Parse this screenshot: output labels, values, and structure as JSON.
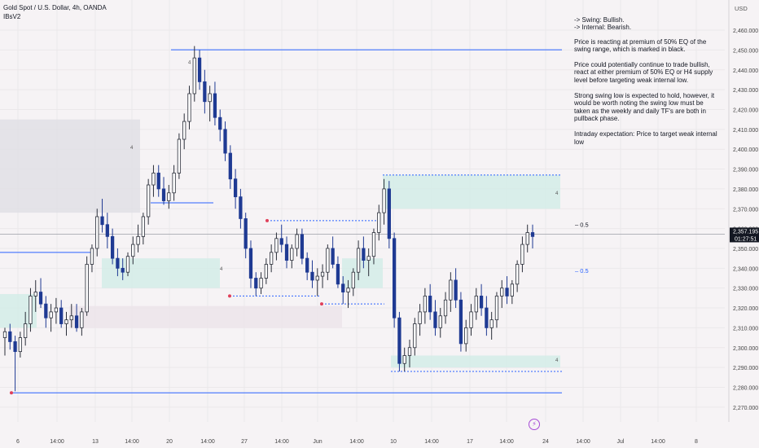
{
  "header": {
    "title": "Gold Spot / U.S. Dollar, 4h, OANDA",
    "indicator": "IBsV2"
  },
  "currency": "USD",
  "analysis": {
    "bias_swing": "-> Swing:  Bullish.",
    "bias_internal": "-> Internal:  Bearish.",
    "para1": "Price is reacting at premium of 50% EQ of the swing range, which is marked in black.",
    "para2": "Price could potentially continue to trade bullish, react at either premium of 50% EQ or H4 supply level before targeting weak internal low.",
    "para3": "Strong swing low is expected to hold, however, it would be worth noting the swing low must be taken as the weekly and daily TF's are both in pullback phase.",
    "para4": "Intraday expectation: Price to target weak internal low"
  },
  "price_labels": {
    "current": "2,357.195",
    "countdown": "01:27:51"
  },
  "markers": {
    "eq_label_1": "0.5",
    "eq_label_2": "0.5",
    "zone_tag": "4",
    "lightning": "⚡"
  },
  "colors": {
    "bull": "#2a2e39",
    "bear": "#1f3a93",
    "grid": "#ebe8ea",
    "level_line": "#2962ff",
    "demand_zone": "#d4ece8",
    "supply_zone": "#e1dfe5"
  },
  "chart_data": {
    "type": "candlestick",
    "symbol": "XAUUSD",
    "timeframe": "4h",
    "y_axis": {
      "ticks": [
        2270,
        2280,
        2290,
        2300,
        2310,
        2320,
        2330,
        2340,
        2350,
        2360,
        2370,
        2380,
        2390,
        2400,
        2410,
        2420,
        2430,
        2440,
        2450,
        2460
      ],
      "tick_labels": [
        "2,270.000",
        "2,280.000",
        "2,290.000",
        "2,300.000",
        "2,310.000",
        "2,320.000",
        "2,330.000",
        "2,340.000",
        "2,350.000",
        "2,360.000",
        "2,370.000",
        "2,380.000",
        "2,390.000",
        "2,400.000",
        "2,410.000",
        "2,420.000",
        "2,430.000",
        "2,440.000",
        "2,450.000",
        "2,460.000"
      ],
      "range": [
        2265,
        2467
      ]
    },
    "x_axis": {
      "tick_labels": [
        "6",
        "14:00",
        "13",
        "14:00",
        "20",
        "14:00",
        "27",
        "14:00",
        "Jun",
        "14:00",
        "10",
        "14:00",
        "17",
        "14:00",
        "24",
        "14:00",
        "Jul",
        "14:00",
        "8"
      ]
    },
    "current_price": 2357.195,
    "swing_high": 2450.1,
    "swing_low": 2277.2,
    "candles": [
      [
        2305,
        2310,
        2296,
        2308
      ],
      [
        2308,
        2312,
        2299,
        2303
      ],
      [
        2303,
        2306,
        2278,
        2298
      ],
      [
        2298,
        2308,
        2295,
        2305
      ],
      [
        2305,
        2318,
        2301,
        2312
      ],
      [
        2312,
        2330,
        2308,
        2326
      ],
      [
        2326,
        2334,
        2318,
        2328
      ],
      [
        2328,
        2335,
        2320,
        2322
      ],
      [
        2322,
        2326,
        2310,
        2315
      ],
      [
        2315,
        2322,
        2308,
        2318
      ],
      [
        2318,
        2325,
        2312,
        2320
      ],
      [
        2320,
        2324,
        2310,
        2312
      ],
      [
        2312,
        2318,
        2306,
        2314
      ],
      [
        2314,
        2322,
        2310,
        2316
      ],
      [
        2316,
        2322,
        2308,
        2310
      ],
      [
        2310,
        2320,
        2306,
        2318
      ],
      [
        2318,
        2346,
        2316,
        2342
      ],
      [
        2342,
        2352,
        2338,
        2350
      ],
      [
        2350,
        2370,
        2346,
        2366
      ],
      [
        2366,
        2375,
        2358,
        2362
      ],
      [
        2362,
        2368,
        2350,
        2356
      ],
      [
        2356,
        2360,
        2342,
        2345
      ],
      [
        2345,
        2350,
        2336,
        2340
      ],
      [
        2340,
        2345,
        2334,
        2338
      ],
      [
        2338,
        2348,
        2336,
        2346
      ],
      [
        2346,
        2356,
        2342,
        2352
      ],
      [
        2352,
        2362,
        2348,
        2356
      ],
      [
        2356,
        2368,
        2352,
        2366
      ],
      [
        2366,
        2385,
        2362,
        2382
      ],
      [
        2382,
        2392,
        2376,
        2388
      ],
      [
        2388,
        2392,
        2376,
        2380
      ],
      [
        2380,
        2386,
        2372,
        2374
      ],
      [
        2374,
        2382,
        2370,
        2378
      ],
      [
        2378,
        2392,
        2374,
        2388
      ],
      [
        2388,
        2408,
        2385,
        2405
      ],
      [
        2405,
        2418,
        2400,
        2414
      ],
      [
        2414,
        2432,
        2410,
        2428
      ],
      [
        2428,
        2452,
        2424,
        2446
      ],
      [
        2446,
        2450,
        2430,
        2434
      ],
      [
        2434,
        2440,
        2418,
        2424
      ],
      [
        2424,
        2432,
        2414,
        2428
      ],
      [
        2428,
        2434,
        2412,
        2416
      ],
      [
        2416,
        2420,
        2404,
        2410
      ],
      [
        2410,
        2414,
        2394,
        2398
      ],
      [
        2398,
        2402,
        2380,
        2385
      ],
      [
        2385,
        2390,
        2370,
        2376
      ],
      [
        2376,
        2380,
        2360,
        2365
      ],
      [
        2365,
        2368,
        2345,
        2350
      ],
      [
        2350,
        2354,
        2330,
        2335
      ],
      [
        2335,
        2338,
        2326,
        2330
      ],
      [
        2330,
        2338,
        2327,
        2335
      ],
      [
        2335,
        2345,
        2332,
        2342
      ],
      [
        2342,
        2352,
        2338,
        2348
      ],
      [
        2348,
        2358,
        2344,
        2355
      ],
      [
        2355,
        2362,
        2348,
        2352
      ],
      [
        2352,
        2356,
        2340,
        2344
      ],
      [
        2344,
        2352,
        2340,
        2350
      ],
      [
        2350,
        2360,
        2346,
        2357
      ],
      [
        2357,
        2360,
        2342,
        2345
      ],
      [
        2345,
        2348,
        2334,
        2338
      ],
      [
        2338,
        2344,
        2330,
        2334
      ],
      [
        2334,
        2340,
        2326,
        2336
      ],
      [
        2336,
        2342,
        2330,
        2338
      ],
      [
        2338,
        2352,
        2334,
        2350
      ],
      [
        2350,
        2356,
        2340,
        2342
      ],
      [
        2342,
        2346,
        2330,
        2332
      ],
      [
        2332,
        2336,
        2322,
        2328
      ],
      [
        2328,
        2334,
        2320,
        2330
      ],
      [
        2330,
        2340,
        2326,
        2338
      ],
      [
        2338,
        2354,
        2334,
        2350
      ],
      [
        2350,
        2356,
        2340,
        2344
      ],
      [
        2344,
        2350,
        2336,
        2346
      ],
      [
        2346,
        2360,
        2342,
        2358
      ],
      [
        2358,
        2372,
        2354,
        2368
      ],
      [
        2368,
        2385,
        2362,
        2380
      ],
      [
        2380,
        2384,
        2350,
        2355
      ],
      [
        2355,
        2358,
        2310,
        2315
      ],
      [
        2315,
        2318,
        2288,
        2292
      ],
      [
        2292,
        2300,
        2288,
        2296
      ],
      [
        2296,
        2304,
        2290,
        2300
      ],
      [
        2300,
        2315,
        2296,
        2312
      ],
      [
        2312,
        2322,
        2306,
        2318
      ],
      [
        2318,
        2330,
        2312,
        2326
      ],
      [
        2326,
        2332,
        2314,
        2318
      ],
      [
        2318,
        2324,
        2306,
        2310
      ],
      [
        2310,
        2320,
        2305,
        2316
      ],
      [
        2316,
        2328,
        2312,
        2324
      ],
      [
        2324,
        2338,
        2318,
        2334
      ],
      [
        2334,
        2340,
        2320,
        2324
      ],
      [
        2324,
        2328,
        2298,
        2302
      ],
      [
        2302,
        2314,
        2298,
        2310
      ],
      [
        2310,
        2322,
        2306,
        2318
      ],
      [
        2318,
        2330,
        2314,
        2326
      ],
      [
        2326,
        2332,
        2316,
        2320
      ],
      [
        2320,
        2326,
        2306,
        2310
      ],
      [
        2310,
        2318,
        2304,
        2314
      ],
      [
        2314,
        2328,
        2310,
        2326
      ],
      [
        2326,
        2334,
        2320,
        2330
      ],
      [
        2330,
        2336,
        2322,
        2326
      ],
      [
        2326,
        2334,
        2322,
        2332
      ],
      [
        2332,
        2344,
        2328,
        2342
      ],
      [
        2342,
        2356,
        2338,
        2352
      ],
      [
        2352,
        2362,
        2348,
        2358
      ],
      [
        2358,
        2362,
        2350,
        2356
      ]
    ],
    "zones": [
      {
        "kind": "supply",
        "from": 2368,
        "to": 2415
      },
      {
        "kind": "supply",
        "from": 2370,
        "to": 2387
      },
      {
        "kind": "demand",
        "from": 2330,
        "to": 2345
      },
      {
        "kind": "demand",
        "from": 2310,
        "to": 2321
      },
      {
        "kind": "demand",
        "from": 2286,
        "to": 2295
      }
    ]
  }
}
